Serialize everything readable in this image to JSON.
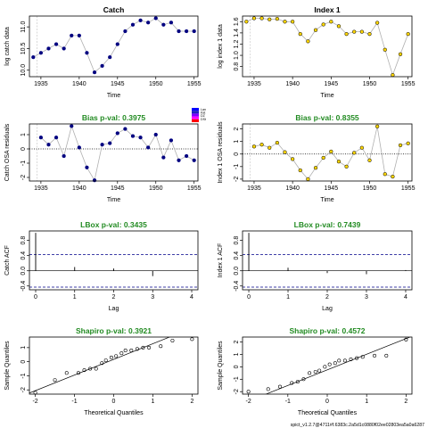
{
  "footer_text": "spict_v1.2.7@4711#f.6383c.2a5d1c0880f02ee02803ea5a0a6287",
  "colors": {
    "title_black": "#000000",
    "title_green": "#228b22",
    "catch_points": "#000080",
    "index_points": "#ffd700",
    "line": "#b0b0b0",
    "vline": "#d0d0d0",
    "hline_blue": "#00008b",
    "legend_swatches": [
      "#0000ff",
      "#2020c0",
      "#8000ff",
      "#ff00ff",
      "#ff0000"
    ]
  },
  "legend_labels": [
    "Lan",
    "Kat",
    "DZ",
    "DSt"
  ],
  "chart_data": [
    {
      "id": "catch",
      "type": "line",
      "title": "Catch",
      "title_color": "black",
      "xlabel": "Time",
      "ylabel": "log catch data",
      "xlim": [
        1933.5,
        1955.5
      ],
      "ylim": [
        9.85,
        11.25
      ],
      "xticks": [
        1935,
        1940,
        1945,
        1950,
        1955
      ],
      "yticks": [
        10.0,
        10.5,
        11.0
      ],
      "ytick_labels": [
        "10.0",
        "10.5",
        "11.0"
      ],
      "vline": 1934.5,
      "points": "catch",
      "x": [
        1934,
        1935,
        1936,
        1937,
        1938,
        1939,
        1940,
        1941,
        1942,
        1943,
        1944,
        1945,
        1946,
        1947,
        1948,
        1949,
        1950,
        1951,
        1952,
        1953,
        1954,
        1955
      ],
      "y": [
        10.3,
        10.4,
        10.5,
        10.6,
        10.5,
        10.8,
        10.8,
        10.4,
        9.95,
        10.1,
        10.3,
        10.6,
        10.9,
        11.05,
        11.15,
        11.1,
        11.2,
        11.05,
        11.1,
        10.9,
        10.9,
        10.9
      ]
    },
    {
      "id": "index",
      "type": "line",
      "title": "Index 1",
      "title_color": "black",
      "xlabel": "Time",
      "ylabel": "log index 1 data",
      "xlim": [
        1933.5,
        1955.5
      ],
      "ylim": [
        0.62,
        1.7
      ],
      "xticks": [
        1935,
        1940,
        1945,
        1950,
        1955
      ],
      "yticks": [
        0.8,
        1.0,
        1.2,
        1.4,
        1.6
      ],
      "ytick_labels": [
        "0.8",
        "1.0",
        "1.2",
        "1.4",
        "1.6"
      ],
      "vline": 1934.5,
      "points": "index",
      "x": [
        1934,
        1935,
        1936,
        1937,
        1938,
        1939,
        1940,
        1941,
        1942,
        1943,
        1944,
        1945,
        1946,
        1947,
        1948,
        1949,
        1950,
        1951,
        1952,
        1953,
        1954,
        1955
      ],
      "y": [
        1.6,
        1.66,
        1.66,
        1.64,
        1.65,
        1.6,
        1.6,
        1.38,
        1.25,
        1.45,
        1.55,
        1.6,
        1.52,
        1.38,
        1.42,
        1.42,
        1.38,
        1.58,
        1.1,
        0.65,
        1.02,
        1.38
      ]
    },
    {
      "id": "catch_residuals",
      "type": "line",
      "title": "Bias p-val: 0.3975",
      "title_color": "green",
      "xlabel": "Time",
      "ylabel": "Catch OSA residuals",
      "xlim": [
        1933.5,
        1955.5
      ],
      "ylim": [
        -2.25,
        1.75
      ],
      "xticks": [
        1935,
        1940,
        1945,
        1950,
        1955
      ],
      "yticks": [
        -2,
        -1,
        0,
        1
      ],
      "ytick_labels": [
        "-2",
        "-1",
        "0",
        "1"
      ],
      "vline": 1934.5,
      "hline": 0,
      "points": "catch",
      "x": [
        1935,
        1936,
        1937,
        1938,
        1939,
        1940,
        1941,
        1942,
        1943,
        1944,
        1945,
        1946,
        1947,
        1948,
        1949,
        1950,
        1951,
        1952,
        1953,
        1954,
        1955
      ],
      "y": [
        0.8,
        0.3,
        0.8,
        -0.5,
        1.6,
        0.1,
        -1.3,
        -2.2,
        0.3,
        0.4,
        1.1,
        1.4,
        0.9,
        0.8,
        0.1,
        1.0,
        -0.6,
        0.6,
        -0.8,
        -0.5,
        -0.8
      ]
    },
    {
      "id": "index_residuals",
      "type": "line",
      "title": "Bias p-val: 0.8355",
      "title_color": "green",
      "xlabel": "Time",
      "ylabel": "Index 1 OSA residuals",
      "xlim": [
        1933.5,
        1955.5
      ],
      "ylim": [
        -2.15,
        2.4
      ],
      "xticks": [
        1935,
        1940,
        1945,
        1950,
        1955
      ],
      "yticks": [
        -2,
        -1,
        0,
        1,
        2
      ],
      "ytick_labels": [
        "-2",
        "-1",
        "0",
        "1",
        "2"
      ],
      "vline": 1934.5,
      "hline": 0,
      "points": "index",
      "x": [
        1935,
        1936,
        1937,
        1938,
        1939,
        1940,
        1941,
        1942,
        1943,
        1944,
        1945,
        1946,
        1947,
        1948,
        1949,
        1950,
        1951,
        1952,
        1953,
        1954,
        1955
      ],
      "y": [
        0.6,
        0.75,
        0.5,
        0.9,
        0.15,
        -0.4,
        -1.3,
        -2.0,
        -1.1,
        -0.3,
        0.2,
        -0.6,
        -1.0,
        0.1,
        0.5,
        -0.5,
        2.2,
        -1.6,
        -1.8,
        0.7,
        0.85
      ]
    },
    {
      "id": "catch_acf",
      "type": "bar",
      "title": "LBox p-val: 0.3435",
      "title_color": "green",
      "xlabel": "Lag",
      "ylabel": "Catch ACF",
      "xlim": [
        -0.16,
        4.16
      ],
      "ylim": [
        -0.5,
        1.05
      ],
      "xticks": [
        0,
        1,
        2,
        3,
        4
      ],
      "yticks": [
        -0.4,
        0.0,
        0.4,
        0.8
      ],
      "ytick_labels": [
        "-0.4",
        "0.0",
        "0.4",
        "0.8"
      ],
      "lags": [
        0,
        1,
        2,
        3,
        4
      ],
      "values": [
        1.0,
        0.1,
        0.06,
        -0.14,
        0.0
      ],
      "conf": 0.43
    },
    {
      "id": "index_acf",
      "type": "bar",
      "title": "LBox p-val: 0.7439",
      "title_color": "green",
      "xlabel": "Lag",
      "ylabel": "Index 1 ACF",
      "xlim": [
        -0.16,
        4.16
      ],
      "ylim": [
        -0.5,
        1.05
      ],
      "xticks": [
        0,
        1,
        2,
        3,
        4
      ],
      "yticks": [
        -0.4,
        0.0,
        0.4,
        0.8
      ],
      "ytick_labels": [
        "-0.4",
        "0.0",
        "0.4",
        "0.8"
      ],
      "lags": [
        0,
        1,
        2,
        3,
        4
      ],
      "values": [
        1.0,
        0.08,
        -0.06,
        -0.09,
        0.02
      ],
      "conf": 0.43
    },
    {
      "id": "catch_qq",
      "type": "scatter",
      "title": "Shapiro p-val: 0.3921",
      "title_color": "green",
      "xlabel": "Theoretical Quantiles",
      "ylabel": "Sample Quantiles",
      "xlim": [
        -2.15,
        2.15
      ],
      "ylim": [
        -2.3,
        1.75
      ],
      "xticks": [
        -2,
        -1,
        0,
        1,
        2
      ],
      "yticks": [
        -2,
        -1,
        0,
        1
      ],
      "ytick_labels": [
        "-2",
        "-1",
        "0",
        "1"
      ],
      "qqline": true,
      "points": "open",
      "x": [
        -2.0,
        -1.5,
        -1.2,
        -0.9,
        -0.75,
        -0.6,
        -0.45,
        -0.3,
        -0.2,
        -0.06,
        0.06,
        0.2,
        0.3,
        0.45,
        0.6,
        0.75,
        0.9,
        1.2,
        1.5,
        2.0
      ],
      "y": [
        -2.2,
        -1.3,
        -0.8,
        -0.8,
        -0.6,
        -0.5,
        -0.5,
        -0.1,
        0.1,
        0.3,
        0.4,
        0.6,
        0.8,
        0.8,
        0.9,
        1.0,
        1.0,
        1.1,
        1.5,
        1.6
      ]
    },
    {
      "id": "index_qq",
      "type": "scatter",
      "title": "Shapiro p-val: 0.4572",
      "title_color": "green",
      "xlabel": "Theoretical Quantiles",
      "ylabel": "Sample Quantiles",
      "xlim": [
        -2.15,
        2.15
      ],
      "ylim": [
        -2.2,
        2.4
      ],
      "xticks": [
        -2,
        -1,
        0,
        1,
        2
      ],
      "yticks": [
        -2,
        -1,
        0,
        1,
        2
      ],
      "ytick_labels": [
        "-2",
        "-1",
        "0",
        "1",
        "2"
      ],
      "qqline": true,
      "points": "open",
      "x": [
        -2.0,
        -1.5,
        -1.2,
        -0.9,
        -0.75,
        -0.6,
        -0.45,
        -0.3,
        -0.2,
        -0.06,
        0.06,
        0.2,
        0.3,
        0.45,
        0.6,
        0.75,
        0.9,
        1.2,
        1.5,
        2.0
      ],
      "y": [
        -2.0,
        -1.8,
        -1.6,
        -1.3,
        -1.2,
        -1.0,
        -0.5,
        -0.4,
        -0.3,
        0.0,
        0.2,
        0.3,
        0.5,
        0.5,
        0.6,
        0.7,
        0.8,
        0.9,
        0.9,
        2.2
      ]
    }
  ]
}
